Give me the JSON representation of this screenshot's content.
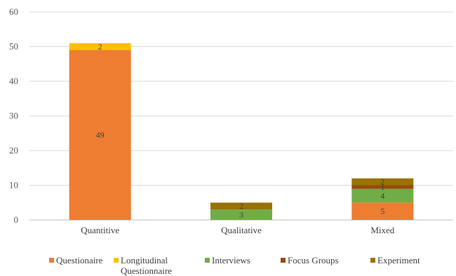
{
  "chart_data": {
    "type": "bar",
    "stacked": true,
    "categories": [
      "Quantitive",
      "Qualitative",
      "Mixed"
    ],
    "series": [
      {
        "name": "Questionaire",
        "color": "#ED7D31",
        "values": [
          49,
          0,
          5
        ]
      },
      {
        "name": "Longitudinal Questionnaire",
        "legend_lines": [
          "Longitudinal",
          "Questionnaire"
        ],
        "color": "#FFC000",
        "values": [
          2,
          0,
          0
        ]
      },
      {
        "name": "Interviews",
        "color": "#70AD47",
        "values": [
          0,
          3,
          4
        ]
      },
      {
        "name": "Focus Groups",
        "color": "#9E480E",
        "values": [
          0,
          0,
          1
        ]
      },
      {
        "name": "Experiment",
        "color": "#997300",
        "values": [
          0,
          2,
          2
        ]
      }
    ],
    "ylim": [
      0,
      60
    ],
    "yticks": [
      0,
      10,
      20,
      30,
      40,
      50,
      60
    ],
    "grid": true,
    "gridColor": "#D9D9D9",
    "legend": "bottom",
    "data_labels": true,
    "title": "",
    "xlabel": "",
    "ylabel": ""
  }
}
